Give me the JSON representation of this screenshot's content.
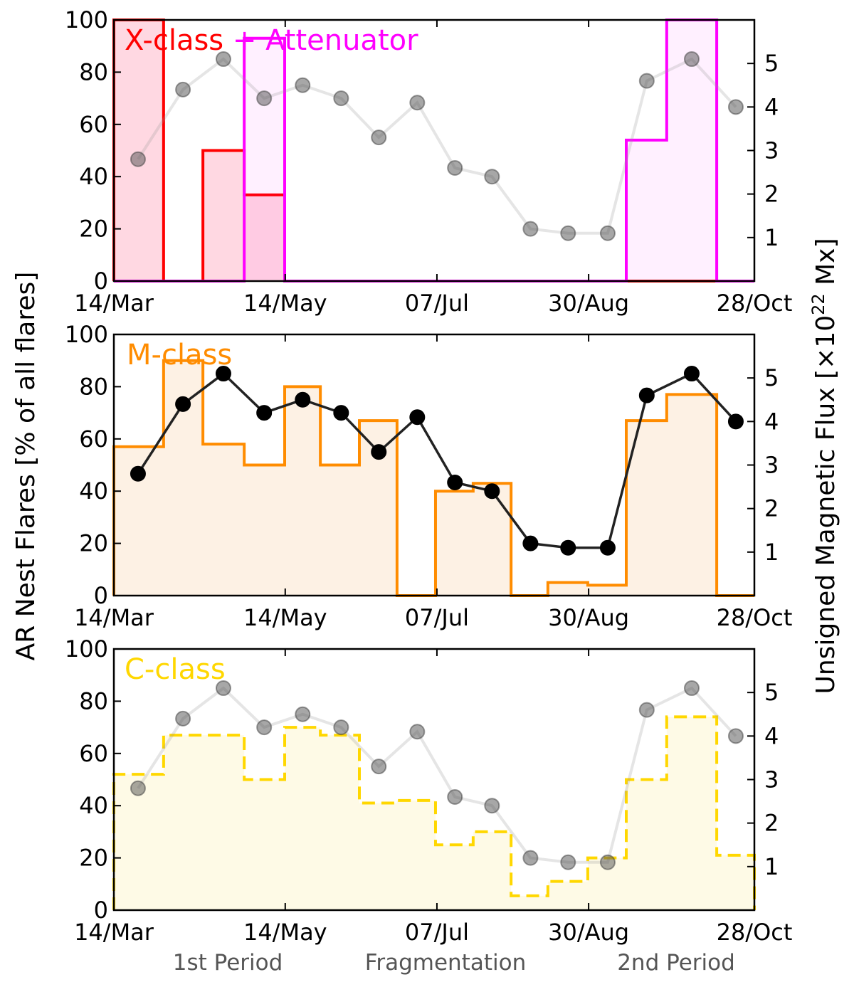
{
  "chart_data": {
    "type": "bar",
    "ylabel_left": "AR Nest Flares [% of all flares]",
    "ylabel_right_prefix": "Unsigned Magnetic Flux [×10",
    "ylabel_right_exp": "22",
    "ylabel_right_suffix": " Mx]",
    "x_unit": "days since 14/Mar",
    "xlim": [
      0,
      228
    ],
    "ylim_left": [
      0,
      100
    ],
    "ylim_right": [
      0,
      6
    ],
    "x_ticks": [
      {
        "day": 0,
        "label": "14/Mar"
      },
      {
        "day": 61,
        "label": "14/May"
      },
      {
        "day": 115,
        "label": "07/Jul"
      },
      {
        "day": 169,
        "label": "30/Aug"
      },
      {
        "day": 228,
        "label": "28/Oct"
      }
    ],
    "y_ticks_left": [
      "0",
      "20",
      "40",
      "60",
      "80",
      "100"
    ],
    "y_ticks_right": [
      "1",
      "2",
      "3",
      "4",
      "5"
    ],
    "bin_edges": [
      0,
      17.7,
      31.7,
      46.4,
      60.8,
      73.5,
      87.4,
      100.8,
      114.5,
      127.9,
      141.4,
      154.5,
      168.7,
      182.4,
      196.8,
      214.6,
      228
    ],
    "flux": {
      "days": [
        8.6,
        24.6,
        39,
        53.5,
        67.2,
        80.9,
        94.3,
        108,
        121.4,
        134.6,
        148.3,
        161.7,
        175.8,
        189.7,
        205.7,
        221.4
      ],
      "values": [
        2.8,
        4.4,
        5.1,
        4.2,
        4.5,
        4.2,
        3.3,
        4.1,
        2.6,
        2.4,
        1.2,
        1.1,
        1.1,
        4.6,
        5.1,
        4.0
      ]
    },
    "panels": [
      {
        "legend": [
          "X-class",
          " + ",
          "Attenuator"
        ],
        "series": [
          {
            "name": "X-class",
            "color": "#ff0000",
            "fill": "rgba(255,60,110,0.2)",
            "dashed": false,
            "values": [
              100,
              0,
              50,
              33,
              0,
              0,
              0,
              0,
              0,
              0,
              0,
              0,
              0,
              0,
              0,
              0
            ]
          },
          {
            "name": "Attenuator",
            "color": "#ff00ff",
            "fill": "rgba(255,0,255,0.06)",
            "dashed": false,
            "values": [
              0,
              0,
              0,
              93,
              0,
              0,
              0,
              0,
              0,
              0,
              0,
              0,
              0,
              54,
              100,
              0
            ]
          }
        ],
        "flux_style": "faded"
      },
      {
        "legend": [
          "M-class"
        ],
        "series": [
          {
            "name": "M-class",
            "color": "#ff8c00",
            "fill": "rgba(240,140,30,0.12)",
            "dashed": false,
            "values": [
              57,
              90,
              58,
              50,
              80,
              50,
              67,
              0,
              40,
              43,
              0,
              5,
              4,
              67,
              77,
              0
            ]
          }
        ],
        "flux_style": "solid"
      },
      {
        "legend": [
          "C-class"
        ],
        "series": [
          {
            "name": "C-class",
            "color": "#ffd700",
            "fill": "rgba(250,215,60,0.13)",
            "dashed": true,
            "values": [
              52,
              67,
              67,
              50,
              70,
              67,
              41,
              42,
              25,
              30,
              5.5,
              11,
              20,
              50,
              74,
              21
            ]
          }
        ],
        "flux_style": "faded"
      }
    ],
    "periods": [
      "1st Period",
      "Fragmentation",
      "2nd Period"
    ]
  }
}
